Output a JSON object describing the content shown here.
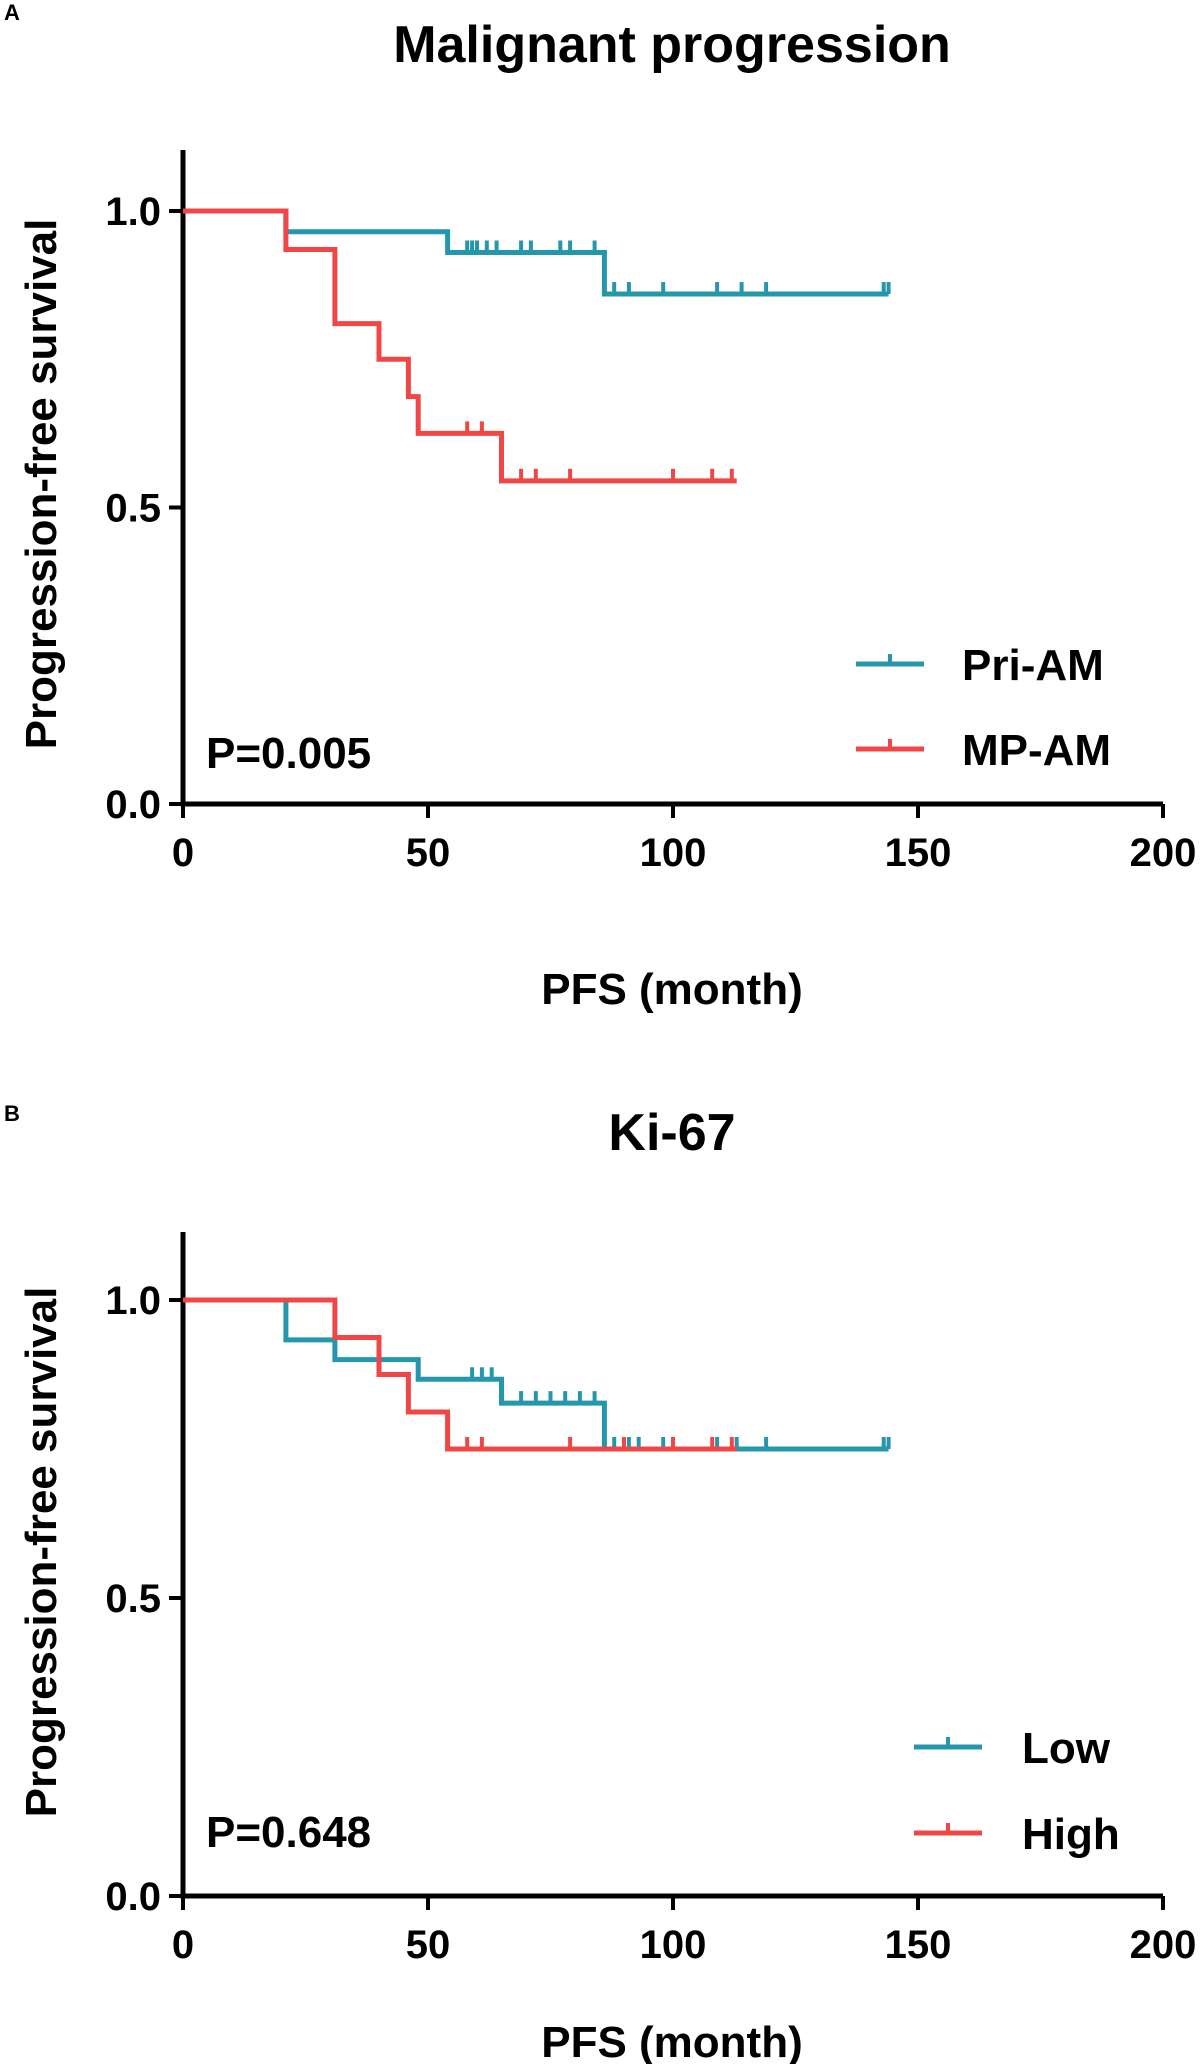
{
  "chart_data": [
    {
      "type": "line",
      "subtype": "kaplan-meier",
      "panel_label": "A",
      "title": "Malignant progression",
      "xlabel": "PFS (month)",
      "ylabel": "Progression-free survival",
      "xlim": [
        0,
        200
      ],
      "ylim": [
        0,
        1.1
      ],
      "xticks": [
        0,
        50,
        100,
        150,
        200
      ],
      "xtick_labels": [
        "0",
        "50",
        "100",
        "150",
        "200"
      ],
      "yticks": [
        0.0,
        0.5,
        1.0
      ],
      "ytick_labels": [
        "0.0",
        "0.5",
        "1.0"
      ],
      "annotation": "P=0.005",
      "legend_position": "bottom-right",
      "series": [
        {
          "name": "Pri-AM",
          "color": "#2497ad",
          "steps": [
            [
              0,
              1.0
            ],
            [
              21,
              0.965
            ],
            [
              54,
              0.93
            ],
            [
              86,
              0.86
            ],
            [
              144,
              0.86
            ]
          ],
          "censored": [
            [
              58,
              0.93
            ],
            [
              59,
              0.93
            ],
            [
              60,
              0.93
            ],
            [
              62,
              0.93
            ],
            [
              64,
              0.93
            ],
            [
              69,
              0.93
            ],
            [
              71,
              0.93
            ],
            [
              77,
              0.93
            ],
            [
              79,
              0.93
            ],
            [
              84,
              0.93
            ],
            [
              88,
              0.86
            ],
            [
              91,
              0.86
            ],
            [
              98,
              0.86
            ],
            [
              109,
              0.86
            ],
            [
              114,
              0.86
            ],
            [
              119,
              0.86
            ],
            [
              143,
              0.86
            ],
            [
              144,
              0.86
            ]
          ]
        },
        {
          "name": "MP-AM",
          "color": "#f04646",
          "steps": [
            [
              0,
              1.0
            ],
            [
              21,
              0.935
            ],
            [
              31,
              0.81
            ],
            [
              40,
              0.75
            ],
            [
              46,
              0.687
            ],
            [
              48,
              0.625
            ],
            [
              65,
              0.545
            ],
            [
              113,
              0.545
            ]
          ],
          "censored": [
            [
              58,
              0.625
            ],
            [
              61,
              0.625
            ],
            [
              69,
              0.545
            ],
            [
              72,
              0.545
            ],
            [
              79,
              0.545
            ],
            [
              100,
              0.545
            ],
            [
              108,
              0.545
            ],
            [
              112,
              0.545
            ]
          ]
        }
      ]
    },
    {
      "type": "line",
      "subtype": "kaplan-meier",
      "panel_label": "B",
      "title": "Ki-67",
      "xlabel": "PFS (month)",
      "ylabel": "Progression-free survival",
      "xlim": [
        0,
        200
      ],
      "ylim": [
        0,
        1.1
      ],
      "xticks": [
        0,
        50,
        100,
        150,
        200
      ],
      "xtick_labels": [
        "0",
        "50",
        "100",
        "150",
        "200"
      ],
      "yticks": [
        0.0,
        0.5,
        1.0
      ],
      "ytick_labels": [
        "0.0",
        "0.5",
        "1.0"
      ],
      "annotation": "P=0.648",
      "legend_position": "bottom-right",
      "series": [
        {
          "name": "Low",
          "color": "#2497ad",
          "steps": [
            [
              0,
              1.0
            ],
            [
              21,
              0.933
            ],
            [
              31,
              0.9
            ],
            [
              48,
              0.867
            ],
            [
              65,
              0.827
            ],
            [
              86,
              0.75
            ],
            [
              144,
              0.75
            ]
          ],
          "censored": [
            [
              59,
              0.867
            ],
            [
              61,
              0.867
            ],
            [
              63,
              0.867
            ],
            [
              69,
              0.827
            ],
            [
              72,
              0.827
            ],
            [
              75,
              0.827
            ],
            [
              78,
              0.827
            ],
            [
              81,
              0.827
            ],
            [
              84,
              0.827
            ],
            [
              88,
              0.75
            ],
            [
              91,
              0.75
            ],
            [
              93,
              0.75
            ],
            [
              98,
              0.75
            ],
            [
              109,
              0.75
            ],
            [
              113,
              0.75
            ],
            [
              119,
              0.75
            ],
            [
              143,
              0.75
            ],
            [
              144,
              0.75
            ]
          ]
        },
        {
          "name": "High",
          "color": "#f04646",
          "steps": [
            [
              0,
              1.0
            ],
            [
              31,
              0.937
            ],
            [
              40,
              0.875
            ],
            [
              46,
              0.812
            ],
            [
              54,
              0.75
            ],
            [
              113,
              0.75
            ]
          ],
          "censored": [
            [
              58,
              0.75
            ],
            [
              61,
              0.75
            ],
            [
              79,
              0.75
            ],
            [
              90,
              0.75
            ],
            [
              100,
              0.75
            ],
            [
              108,
              0.75
            ],
            [
              112,
              0.75
            ]
          ]
        }
      ]
    }
  ]
}
